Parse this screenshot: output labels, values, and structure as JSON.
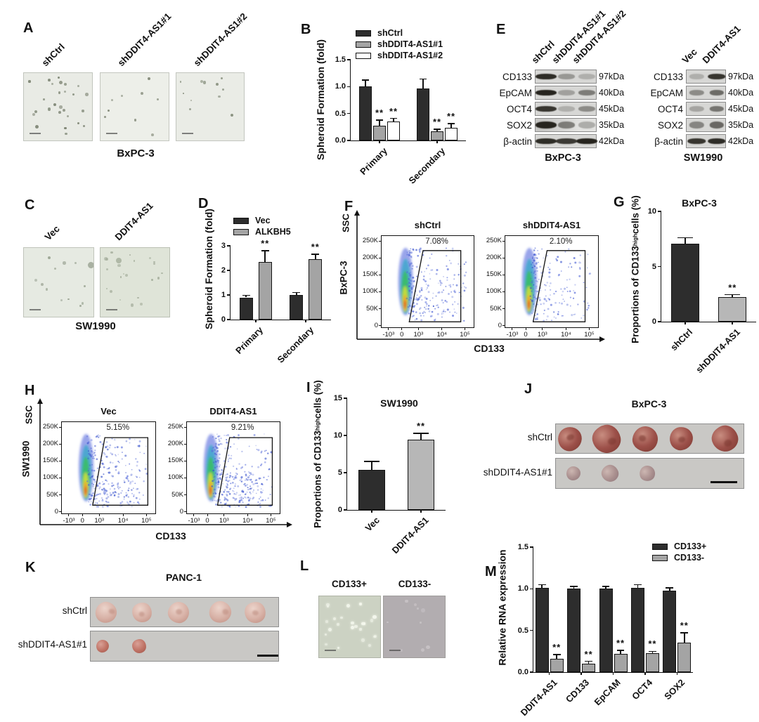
{
  "figure": {
    "background": "#ffffff"
  },
  "panels": {
    "A": {
      "label": "A",
      "columns": [
        "shCtrl",
        "shDDIT4-AS1#1",
        "shDDIT4-AS1#2"
      ],
      "cell_line": "BxPC-3",
      "images": [
        {
          "bg": "#e9ebe5",
          "dot_color": "#79816f",
          "dots": 26
        },
        {
          "bg": "#edefe9",
          "dot_color": "#818876",
          "dots": 9
        },
        {
          "bg": "#eaece6",
          "dot_color": "#7d8572",
          "dots": 11
        }
      ]
    },
    "B": {
      "label": "B"
    },
    "C": {
      "label": "C",
      "columns": [
        "Vec",
        "DDIT4-AS1"
      ],
      "cell_line": "SW1990",
      "images": [
        {
          "bg": "#e6eae2",
          "dot_color": "#9aa392",
          "dots": 12
        },
        {
          "bg": "#dfe4d8",
          "dot_color": "#a3ac9a",
          "dots": 22
        }
      ]
    },
    "D": {
      "label": "D"
    },
    "E": {
      "label": "E",
      "blots": [
        {
          "cell_line": "BxPC-3",
          "lanes": [
            "shCtrl",
            "shDDIT4-AS1#1",
            "shDDIT4-AS1#2"
          ],
          "rows": [
            {
              "marker": "CD133",
              "kda": "97kDa",
              "bands": [
                0.95,
                0.35,
                0.22
              ]
            },
            {
              "marker": "EpCAM",
              "kda": "40kDa",
              "bands": [
                1.0,
                0.3,
                0.5
              ]
            },
            {
              "marker": "OCT4",
              "kda": "45kDa",
              "bands": [
                0.9,
                0.22,
                0.42
              ]
            },
            {
              "marker": "SOX2",
              "kda": "35kDa",
              "bands": [
                1.0,
                0.5,
                0.28
              ]
            },
            {
              "marker": "β-actin",
              "kda": "42kDa",
              "bands": [
                0.95,
                0.88,
                1.0
              ]
            }
          ]
        },
        {
          "cell_line": "SW1990",
          "lanes": [
            "Vec",
            "DDIT4-AS1"
          ],
          "rows": [
            {
              "marker": "CD133",
              "kda": "97kDa",
              "bands": [
                0.22,
                0.9
              ]
            },
            {
              "marker": "EpCAM",
              "kda": "40kDa",
              "bands": [
                0.42,
                0.6
              ]
            },
            {
              "marker": "OCT4",
              "kda": "45kDa",
              "bands": [
                0.28,
                0.55
              ]
            },
            {
              "marker": "SOX2",
              "kda": "35kDa",
              "bands": [
                0.45,
                0.62
              ]
            },
            {
              "marker": "β-actin",
              "kda": "42kDa",
              "bands": [
                0.9,
                0.95
              ]
            }
          ]
        }
      ]
    },
    "F": {
      "label": "F",
      "side_label": "BxPC-3",
      "y_axis": "SSC",
      "x_axis": "CD133",
      "y_ticks": [
        "250K",
        "200K",
        "150K",
        "100K",
        "50K",
        "0"
      ],
      "x_ticks": [
        "-10³",
        "0",
        "10³",
        "10⁴",
        "10⁵"
      ],
      "plots": [
        {
          "title": "shCtrl",
          "percent": "7.08%"
        },
        {
          "title": "shDDIT4-AS1",
          "percent": "2.10%"
        }
      ]
    },
    "G": {
      "label": "G"
    },
    "H": {
      "label": "H",
      "side_label": "SW1990",
      "y_axis": "SSC",
      "x_axis": "CD133",
      "y_ticks": [
        "250K",
        "200K",
        "150K",
        "100K",
        "50K",
        "0"
      ],
      "x_ticks": [
        "-10³",
        "0",
        "10³",
        "10⁴",
        "10⁵"
      ],
      "plots": [
        {
          "title": "Vec",
          "percent": "5.15%"
        },
        {
          "title": "DDIT4-AS1",
          "percent": "9.21%"
        }
      ]
    },
    "I": {
      "label": "I"
    },
    "J": {
      "label": "J",
      "title": "BxPC-3",
      "rows": [
        {
          "label": "shCtrl",
          "tumor_count": 5
        },
        {
          "label": "shDDIT4-AS1#1",
          "tumor_count": 3
        }
      ]
    },
    "K": {
      "label": "K",
      "title": "PANC-1",
      "rows": [
        {
          "label": "shCtrl",
          "tumor_count": 5
        },
        {
          "label": "shDDIT4-AS1#1",
          "tumor_count": 2
        }
      ]
    },
    "L": {
      "label": "L",
      "columns": [
        "CD133+",
        "CD133-"
      ],
      "images": [
        {
          "bg": "#ccd2c3",
          "dot_color": "#f6f9ef",
          "dots": 24
        },
        {
          "bg": "#b2adb0",
          "dot_color": "#c9c4c7",
          "dots": 9
        }
      ]
    },
    "M": {
      "label": "M"
    }
  },
  "chart_data": [
    {
      "id": "B",
      "type": "bar",
      "title": "",
      "xlabel": "",
      "ylabel": "Spheroid Formation (fold)",
      "categories": [
        "Primary",
        "Secondary"
      ],
      "series": [
        {
          "name": "shCtrl",
          "color": "#2d2d2d",
          "values": [
            1.01,
            0.97
          ],
          "errors": [
            0.11,
            0.17
          ],
          "sig": [
            "",
            ""
          ]
        },
        {
          "name": "shDDIT4-AS1#1",
          "color": "#a4a4a4",
          "values": [
            0.28,
            0.17
          ],
          "errors": [
            0.1,
            0.04
          ],
          "sig": [
            "**",
            "**"
          ]
        },
        {
          "name": "shDDIT4-AS1#2",
          "color": "#ffffff",
          "values": [
            0.35,
            0.23
          ],
          "errors": [
            0.06,
            0.08
          ],
          "sig": [
            "**",
            "**"
          ]
        }
      ],
      "ylim": [
        0,
        1.5
      ],
      "yticks": [
        0,
        0.5,
        1,
        1.5
      ],
      "ytick_labels": [
        "0.0",
        "0.5",
        "1.0",
        "1.5"
      ],
      "legend_pos": "top-left",
      "grid": false
    },
    {
      "id": "D",
      "type": "bar",
      "title": "",
      "xlabel": "",
      "ylabel": "Spheroid Formation (fold)",
      "categories": [
        "Primary",
        "Secondary"
      ],
      "series": [
        {
          "name": "Vec",
          "color": "#2d2d2d",
          "values": [
            0.9,
            1.0
          ],
          "errors": [
            0.08,
            0.1
          ],
          "sig": [
            "",
            ""
          ]
        },
        {
          "name": "ALKBH5",
          "color": "#a4a4a4",
          "values": [
            2.35,
            2.45
          ],
          "errors": [
            0.45,
            0.2
          ],
          "sig": [
            "**",
            "**"
          ]
        }
      ],
      "ylim": [
        0,
        3
      ],
      "yticks": [
        0,
        1,
        2,
        3
      ],
      "ytick_labels": [
        "0",
        "1",
        "2",
        "3"
      ],
      "legend_pos": "top-left",
      "grid": false
    },
    {
      "id": "G",
      "type": "bar",
      "title": "BxPC-3",
      "xlabel": "",
      "ylabel_pre": "Proportions of CD133",
      "ylabel_sup": "high",
      "ylabel_post": " cells (%)",
      "bars": [
        {
          "label": "shCtrl",
          "value": 7.1,
          "error": 0.5,
          "color": "#2d2d2d",
          "sig": ""
        },
        {
          "label": "shDDIT4-AS1",
          "value": 2.2,
          "error": 0.25,
          "color": "#b7b7b7",
          "sig": "**"
        }
      ],
      "ylim": [
        0,
        10
      ],
      "yticks": [
        0,
        5,
        10
      ],
      "ytick_labels": [
        "0",
        "5",
        "10"
      ],
      "grid": false
    },
    {
      "id": "I",
      "type": "bar",
      "title": "SW1990",
      "xlabel": "",
      "ylabel_pre": "Proportions of CD133",
      "ylabel_sup": "high",
      "ylabel_post": " cells (%)",
      "bars": [
        {
          "label": "Vec",
          "value": 5.4,
          "error": 1.1,
          "color": "#2d2d2d",
          "sig": ""
        },
        {
          "label": "DDIT4-AS1",
          "value": 9.4,
          "error": 0.9,
          "color": "#b7b7b7",
          "sig": "**"
        }
      ],
      "ylim": [
        0,
        15
      ],
      "yticks": [
        0,
        5,
        10,
        15
      ],
      "ytick_labels": [
        "0",
        "5",
        "10",
        "15"
      ],
      "grid": false
    },
    {
      "id": "M",
      "type": "bar",
      "title": "",
      "xlabel": "",
      "ylabel": "Relative RNA expression",
      "categories": [
        "DDIT4-AS1",
        "CD133",
        "EpCAM",
        "OCT4",
        "SOX2"
      ],
      "series": [
        {
          "name": "CD133+",
          "color": "#2d2d2d",
          "values": [
            1.01,
            1.0,
            1.0,
            1.01,
            0.98
          ],
          "errors": [
            0.04,
            0.03,
            0.03,
            0.04,
            0.03
          ],
          "sig": [
            "",
            "",
            "",
            "",
            ""
          ]
        },
        {
          "name": "CD133-",
          "color": "#a4a4a4",
          "values": [
            0.16,
            0.1,
            0.22,
            0.23,
            0.35
          ],
          "errors": [
            0.05,
            0.03,
            0.04,
            0.02,
            0.12
          ],
          "sig": [
            "**",
            "**",
            "**",
            "**",
            "**"
          ]
        }
      ],
      "ylim": [
        0,
        1.5
      ],
      "yticks": [
        0,
        0.5,
        1,
        1.5
      ],
      "ytick_labels": [
        "0.0",
        "0.5",
        "1.0",
        "1.5"
      ],
      "legend_pos": "top-right",
      "grid": false
    }
  ]
}
